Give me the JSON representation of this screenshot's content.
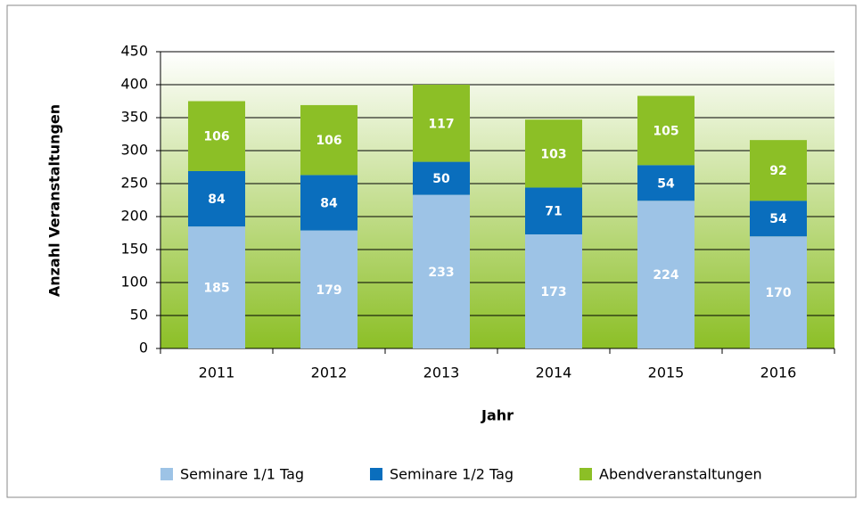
{
  "chart_data": {
    "type": "stacked_bar",
    "x_label": "Jahr",
    "y_label": "Anzahl Veranstaltungen",
    "categories": [
      "2011",
      "2012",
      "2013",
      "2014",
      "2015",
      "2016"
    ],
    "series": [
      {
        "name": "Seminare 1/1 Tag",
        "color": "#9dc3e6",
        "values": [
          185,
          179,
          233,
          173,
          224,
          170
        ]
      },
      {
        "name": "Seminare 1/2 Tag",
        "color": "#0a6ebd",
        "values": [
          84,
          84,
          50,
          71,
          54,
          54
        ]
      },
      {
        "name": "Abendveranstaltungen",
        "color": "#8cbf26",
        "values": [
          106,
          106,
          117,
          103,
          105,
          92
        ]
      }
    ],
    "ylim": [
      0,
      450
    ],
    "yticks": [
      0,
      50,
      100,
      150,
      200,
      250,
      300,
      350,
      400,
      450
    ],
    "grid": true,
    "legend": "bottom"
  }
}
